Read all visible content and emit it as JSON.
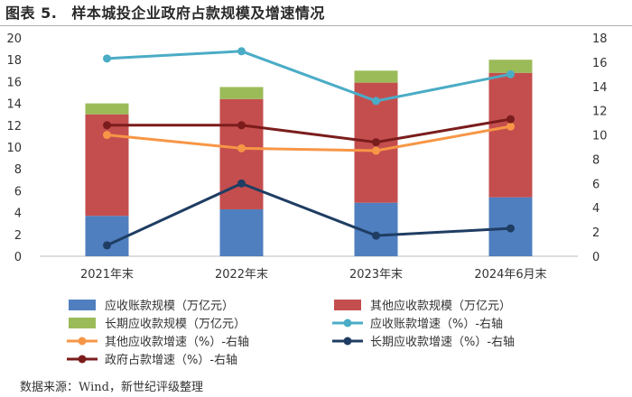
{
  "header": {
    "title_number": "图表 5.",
    "title_text": "样本城投企业政府占款规模及增速情况"
  },
  "source": "数据来源：Wind，新世纪评级整理",
  "chart_data": {
    "type": "bar",
    "subtype": "stacked-bar-with-lines",
    "categories": [
      "2021年末",
      "2022年末",
      "2023年末",
      "2024年6月末"
    ],
    "left_axis": {
      "ylim": [
        0,
        20
      ],
      "ticks": [
        0,
        2,
        4,
        6,
        8,
        10,
        12,
        14,
        16,
        18,
        20
      ]
    },
    "right_axis": {
      "ylim": [
        0,
        18
      ],
      "ticks": [
        0,
        2,
        4,
        6,
        8,
        10,
        12,
        14,
        16,
        18
      ]
    },
    "bar_series": [
      {
        "name": "应收账款规模（万亿元）",
        "color": "#4f7fbf",
        "values": [
          3.7,
          4.3,
          4.9,
          5.4
        ]
      },
      {
        "name": "其他应收款规模（万亿元）",
        "color": "#c44e4e",
        "values": [
          9.3,
          10.1,
          11.0,
          11.4
        ]
      },
      {
        "name": "长期应收款规模（万亿元）",
        "color": "#9bbb59",
        "values": [
          1.0,
          1.1,
          1.1,
          1.2
        ]
      }
    ],
    "line_series": [
      {
        "name": "应收账款增速（%）-右轴",
        "color": "#4bacc6",
        "values": [
          16.3,
          16.9,
          12.8,
          15.0
        ]
      },
      {
        "name": "其他应收款增速（%）-右轴",
        "color": "#f79646",
        "values": [
          10.0,
          8.9,
          8.7,
          10.7
        ]
      },
      {
        "name": "长期应收款增速（%）-右轴",
        "color": "#1f3d63",
        "values": [
          0.9,
          6.0,
          1.7,
          2.3
        ]
      },
      {
        "name": "政府占款增速（%）-右轴",
        "color": "#7b1c1c",
        "values": [
          10.8,
          10.8,
          9.4,
          11.3
        ]
      }
    ],
    "legend": "bottom",
    "grid": false
  }
}
